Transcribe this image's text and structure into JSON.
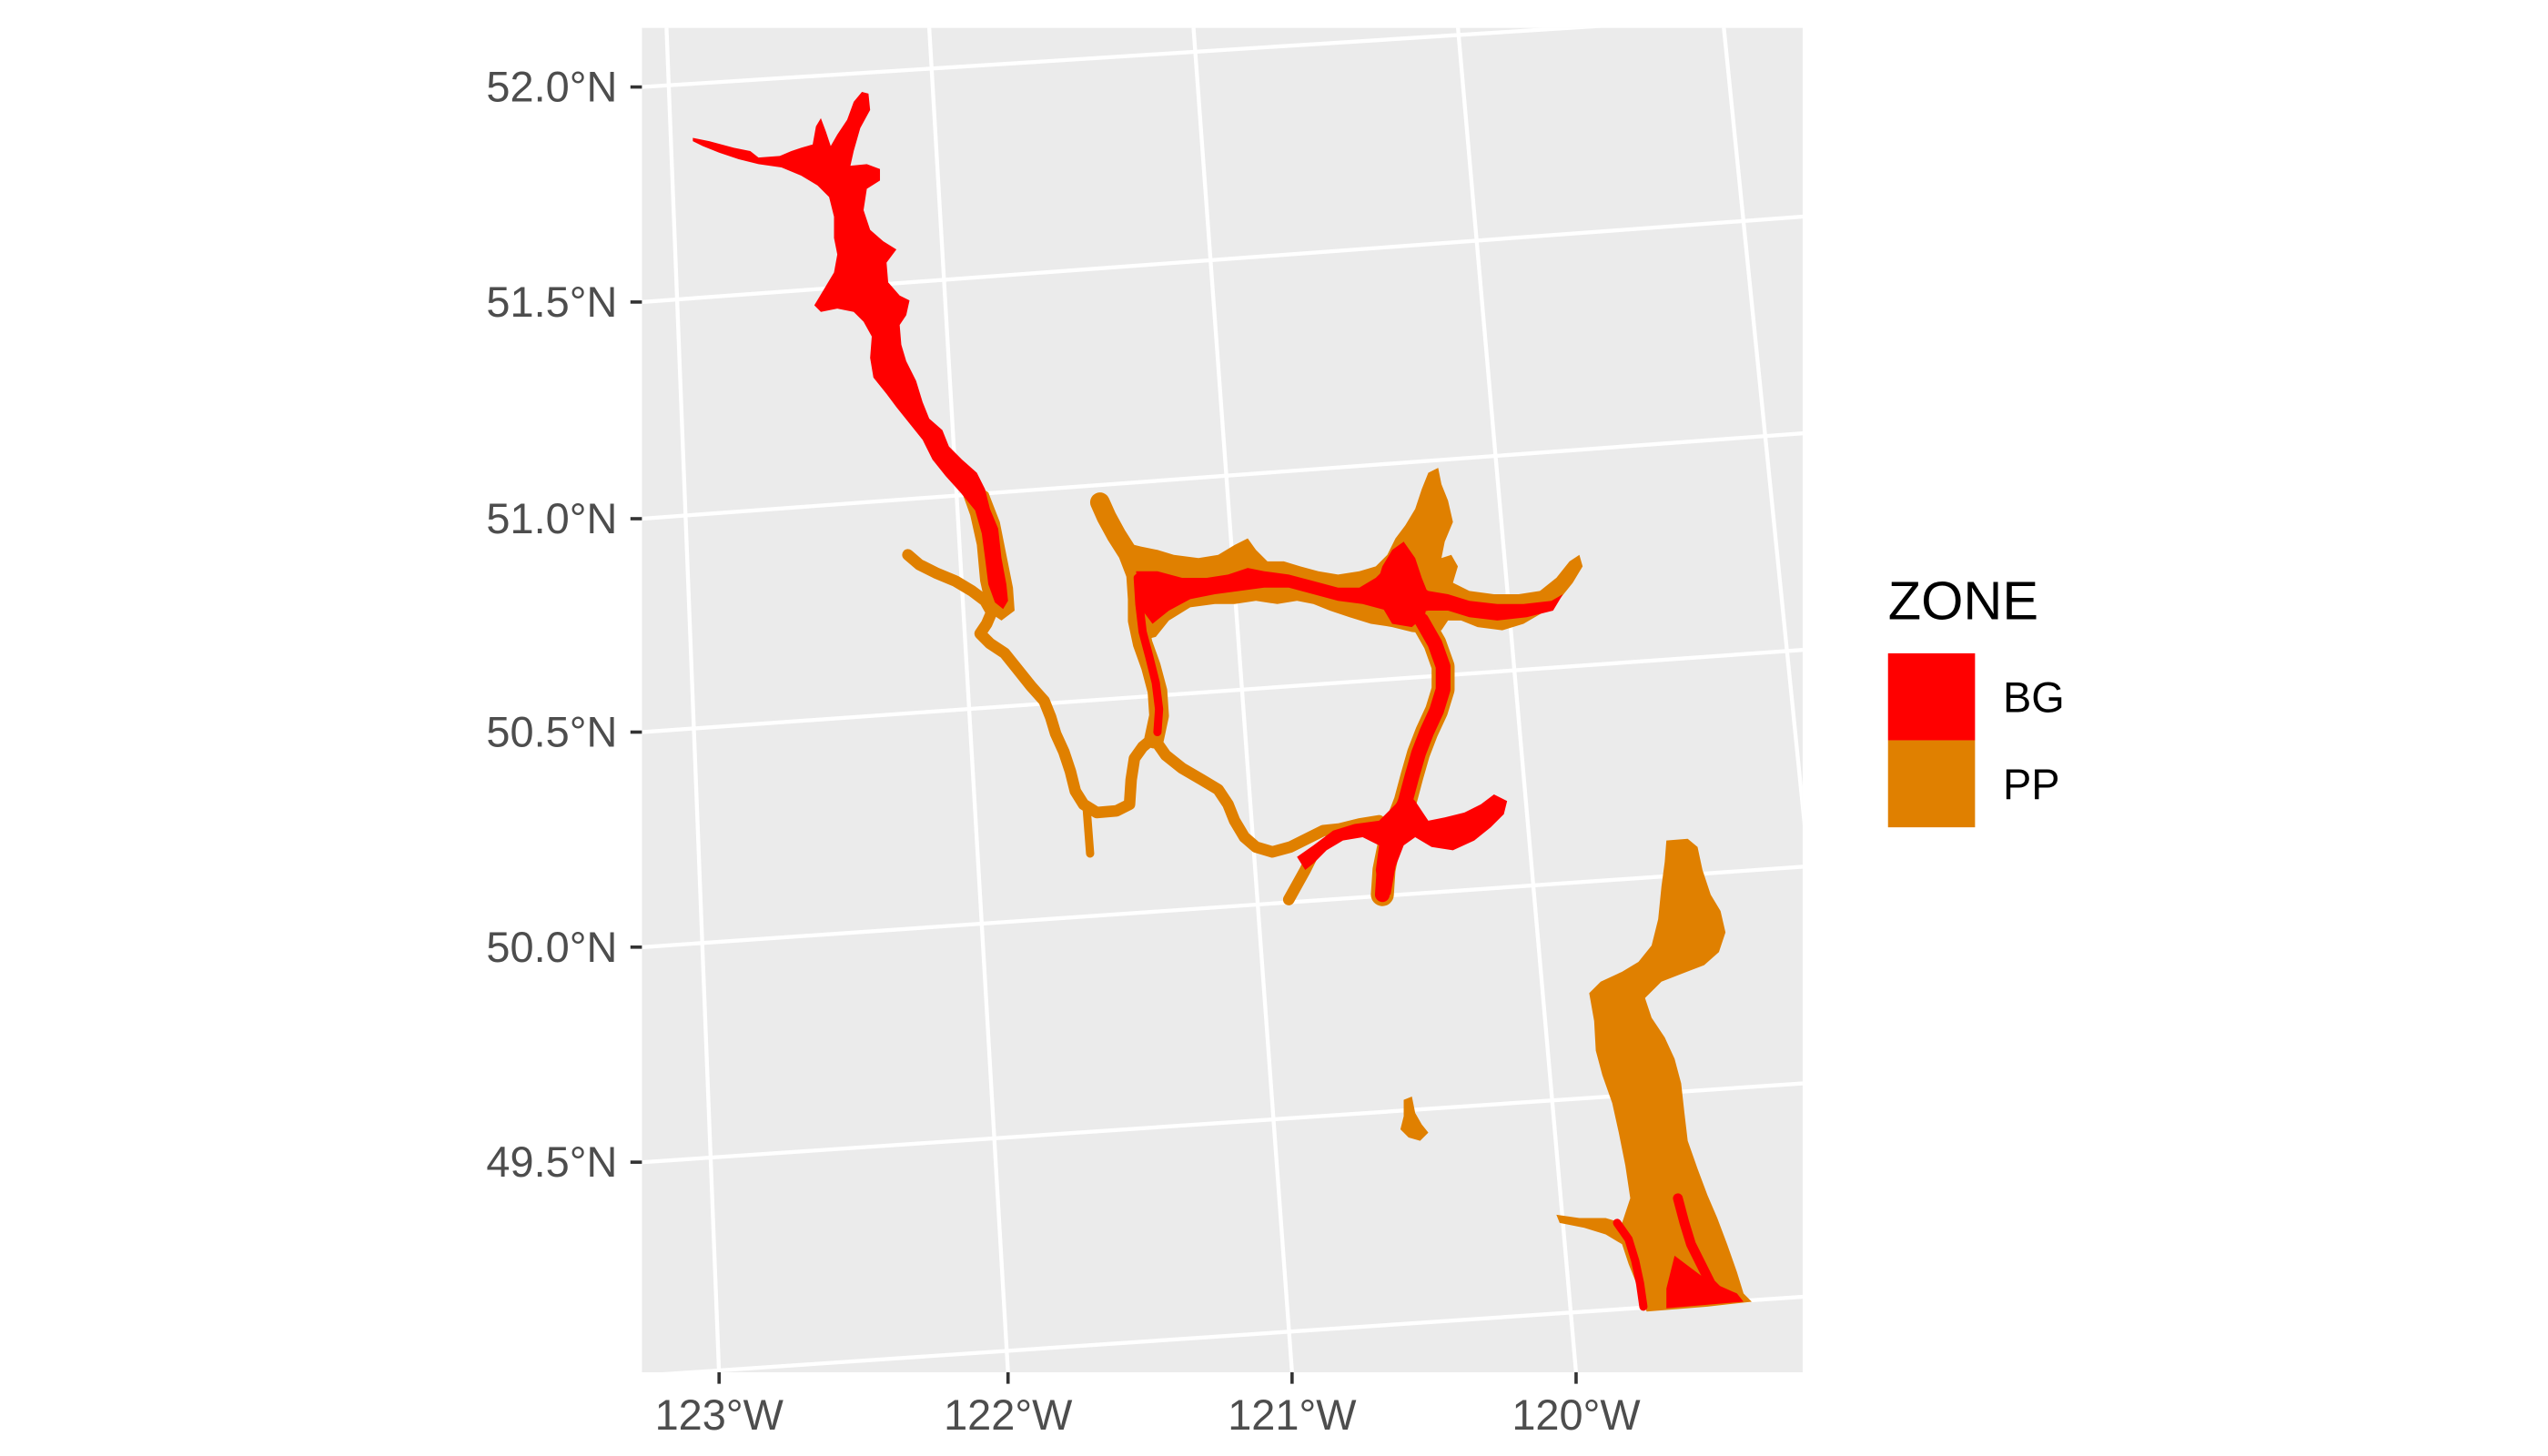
{
  "map": {
    "y_ticks": [
      "52.0°N",
      "51.5°N",
      "51.0°N",
      "50.5°N",
      "50.0°N",
      "49.5°N"
    ],
    "x_ticks": [
      "123°W",
      "122°W",
      "121°W",
      "120°W"
    ],
    "legend": {
      "title": "ZONE",
      "items": [
        {
          "label": "BG",
          "color": "#FF0000"
        },
        {
          "label": "PP",
          "color": "#E08000"
        }
      ]
    },
    "colors": {
      "panel": "#EBEBEB",
      "grid": "#FFFFFF",
      "tick_text": "#4D4D4D"
    }
  }
}
